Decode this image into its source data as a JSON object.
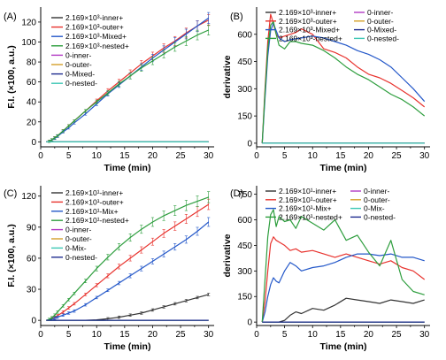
{
  "chart_data": [
    {
      "panel_label": "(A)",
      "type": "line",
      "xlabel": "Time (min)",
      "ylabel": "F.I. (×100, a.u.)",
      "xlim": [
        0,
        31
      ],
      "ylim": [
        -5,
        135
      ],
      "xticks": [
        0,
        5,
        10,
        15,
        20,
        25,
        30
      ],
      "yticks": [
        0,
        20,
        40,
        60,
        80,
        100,
        120
      ],
      "legend_position": "top-left",
      "error_bars": true,
      "x": [
        1,
        1.5,
        2,
        2.5,
        3,
        4,
        5,
        6,
        8,
        10,
        12,
        14,
        16,
        18,
        20,
        22,
        24,
        26,
        28,
        30
      ],
      "series": [
        {
          "name": "2.169×10³-inner+",
          "color": "#333333",
          "values": [
            0,
            0,
            0,
            0,
            0,
            0,
            0,
            0,
            0,
            0,
            0,
            0,
            0,
            0,
            0,
            0,
            0,
            0,
            0,
            0
          ]
        },
        {
          "name": "2.169×10³-outer+",
          "color": "#e8332e",
          "values": [
            0,
            0.6,
            2,
            4,
            6,
            11,
            16,
            21,
            31,
            41,
            51,
            60,
            69,
            78,
            86,
            94,
            101,
            109,
            116,
            122
          ]
        },
        {
          "name": "2.169×10³-Mixed+",
          "color": "#2458c9",
          "values": [
            0,
            0.5,
            1.8,
            3.5,
            5.5,
            10,
            14,
            19,
            28,
            38,
            48,
            57,
            66,
            75,
            84,
            92,
            100,
            108,
            116,
            124
          ]
        },
        {
          "name": "2.169×10³-nested+",
          "color": "#2e9e3e",
          "values": [
            0,
            0.6,
            2,
            4,
            6,
            11,
            16,
            21,
            31,
            40,
            49,
            58,
            66,
            74,
            81,
            88,
            95,
            101,
            107,
            112
          ]
        },
        {
          "name": "0-inner-",
          "color": "#b23bc4",
          "values": [
            0,
            0,
            0,
            0,
            0,
            0,
            0,
            0,
            0,
            0,
            0,
            0,
            0,
            0,
            0,
            0,
            0,
            0,
            0,
            0
          ]
        },
        {
          "name": "0-outer-",
          "color": "#d4a02a",
          "values": [
            0,
            0,
            0,
            0,
            0,
            0,
            0,
            0,
            0,
            0,
            0,
            0,
            0,
            0,
            0,
            0,
            0,
            0,
            0,
            0
          ]
        },
        {
          "name": "0-Mixed-",
          "color": "#1f2c8f",
          "values": [
            0,
            0,
            0,
            0,
            0,
            0,
            0,
            0,
            0,
            0,
            0,
            0,
            0,
            0,
            0,
            0,
            0,
            0,
            0,
            0
          ]
        },
        {
          "name": "0-nested-",
          "color": "#3cc7b4",
          "values": [
            0,
            0,
            0,
            0,
            0,
            0,
            0,
            0,
            0,
            0,
            0,
            0,
            0,
            0,
            0,
            0,
            0,
            0,
            0,
            0
          ]
        }
      ]
    },
    {
      "panel_label": "(B)",
      "type": "line",
      "xlabel": "Time (min)",
      "ylabel": "derivative",
      "xlim": [
        0,
        31
      ],
      "ylim": [
        -20,
        750
      ],
      "xticks": [
        0,
        5,
        10,
        15,
        20,
        25,
        30
      ],
      "yticks": [
        0,
        150,
        300,
        450,
        600
      ],
      "legend_position": "top",
      "error_bars": false,
      "x": [
        1,
        1.5,
        2,
        2.5,
        3,
        3.5,
        4,
        5,
        6,
        7,
        8,
        10,
        12,
        14,
        16,
        18,
        20,
        22,
        24,
        26,
        28,
        30
      ],
      "series": [
        {
          "name": "2.169×10³-inner+",
          "color": "#333333",
          "values": [
            0,
            0,
            0,
            0,
            0,
            0,
            0,
            0,
            0,
            0,
            0,
            0,
            0,
            0,
            0,
            0,
            0,
            0,
            0,
            0,
            0,
            0
          ]
        },
        {
          "name": "2.169×10³-outer+",
          "color": "#e8332e",
          "values": [
            0,
            300,
            560,
            710,
            660,
            600,
            580,
            590,
            600,
            610,
            630,
            600,
            520,
            500,
            470,
            420,
            380,
            360,
            330,
            290,
            250,
            200
          ]
        },
        {
          "name": "2.169×10³-Mixed+",
          "color": "#2458c9",
          "values": [
            0,
            250,
            480,
            620,
            660,
            620,
            580,
            560,
            570,
            575,
            580,
            590,
            580,
            560,
            540,
            510,
            490,
            460,
            420,
            360,
            300,
            230
          ]
        },
        {
          "name": "2.169×10³-nested+",
          "color": "#2e9e3e",
          "values": [
            0,
            280,
            520,
            650,
            670,
            600,
            540,
            520,
            560,
            560,
            550,
            540,
            510,
            470,
            420,
            380,
            350,
            310,
            270,
            240,
            200,
            150
          ]
        },
        {
          "name": "0-inner-",
          "color": "#b23bc4",
          "values": [
            0,
            0,
            0,
            0,
            0,
            0,
            0,
            0,
            0,
            0,
            0,
            0,
            0,
            0,
            0,
            0,
            0,
            0,
            0,
            0,
            0,
            0
          ]
        },
        {
          "name": "0-outer-",
          "color": "#d4a02a",
          "values": [
            0,
            0,
            0,
            0,
            0,
            0,
            0,
            0,
            0,
            0,
            0,
            0,
            0,
            0,
            0,
            0,
            0,
            0,
            0,
            0,
            0,
            0
          ]
        },
        {
          "name": "0-Mixed-",
          "color": "#1f2c8f",
          "values": [
            0,
            0,
            0,
            0,
            0,
            0,
            0,
            0,
            0,
            0,
            0,
            0,
            0,
            0,
            0,
            0,
            0,
            0,
            0,
            0,
            0,
            0
          ]
        },
        {
          "name": "0-nested-",
          "color": "#3cc7b4",
          "values": [
            0,
            0,
            0,
            0,
            0,
            0,
            0,
            0,
            0,
            0,
            0,
            0,
            0,
            0,
            0,
            0,
            0,
            0,
            0,
            0,
            0,
            0
          ]
        }
      ]
    },
    {
      "panel_label": "(C)",
      "type": "line",
      "xlabel": "Time (min)",
      "ylabel": "F.I. (×100, a.u.)",
      "xlim": [
        0,
        31
      ],
      "ylim": [
        -5,
        130
      ],
      "xticks": [
        0,
        5,
        10,
        15,
        20,
        25,
        30
      ],
      "yticks": [
        0,
        30,
        60,
        90,
        120
      ],
      "legend_position": "top-left",
      "error_bars": true,
      "x": [
        1,
        1.5,
        2,
        2.5,
        3,
        4,
        5,
        6,
        8,
        10,
        12,
        14,
        16,
        18,
        20,
        22,
        24,
        26,
        28,
        30
      ],
      "series": [
        {
          "name": "2.169×10¹-inner+",
          "color": "#333333",
          "values": [
            0,
            0,
            0,
            0,
            0,
            0,
            0,
            0,
            0,
            0.5,
            1.5,
            3,
            5,
            7,
            10,
            13,
            16,
            19,
            22,
            25
          ]
        },
        {
          "name": "2.169×10¹-outer+",
          "color": "#e8332e",
          "values": [
            0,
            0.5,
            1.5,
            3,
            4.5,
            8,
            12,
            16,
            25,
            34,
            43,
            52,
            60,
            68,
            76,
            84,
            91,
            98,
            105,
            112
          ]
        },
        {
          "name": "2.169×10¹-Mix+",
          "color": "#2458c9",
          "values": [
            0,
            0.3,
            1,
            2,
            3,
            5,
            7,
            9,
            15,
            22,
            29,
            36,
            43,
            50,
            57,
            64,
            71,
            78,
            86,
            95
          ]
        },
        {
          "name": "2.169×10¹-nested+",
          "color": "#2e9e3e",
          "values": [
            0,
            0.8,
            2.5,
            5,
            8,
            14,
            20,
            26,
            38,
            50,
            61,
            71,
            80,
            88,
            95,
            101,
            106,
            111,
            115,
            119
          ]
        },
        {
          "name": "0-inner-",
          "color": "#b23bc4",
          "values": [
            0,
            0,
            0,
            0,
            0,
            0,
            0,
            0,
            0,
            0,
            0,
            0,
            0,
            0,
            0,
            0,
            0,
            0,
            0,
            0
          ]
        },
        {
          "name": "0-outer-",
          "color": "#d4a02a",
          "values": [
            0,
            0,
            0,
            0,
            0,
            0,
            0,
            0,
            0,
            0,
            0,
            0,
            0,
            0,
            0,
            0,
            0,
            0,
            0,
            0
          ]
        },
        {
          "name": "0-Mix-",
          "color": "#3cc7b4",
          "values": [
            0,
            0,
            0,
            0,
            0,
            0,
            0,
            0,
            0,
            0,
            0,
            0,
            0,
            0,
            0,
            0,
            0,
            0,
            0,
            0
          ]
        },
        {
          "name": "0-nested-",
          "color": "#1f2c8f",
          "values": [
            0,
            0,
            0,
            0,
            0,
            0,
            0,
            0,
            0,
            0,
            0,
            0,
            0,
            0,
            0,
            0,
            0,
            0,
            0,
            0
          ]
        }
      ]
    },
    {
      "panel_label": "(D)",
      "type": "line",
      "xlabel": "Time (min)",
      "ylabel": "derivative",
      "xlim": [
        0,
        31
      ],
      "ylim": [
        -20,
        800
      ],
      "xticks": [
        0,
        5,
        10,
        15,
        20,
        25,
        30
      ],
      "yticks": [
        0,
        150,
        300,
        450,
        600,
        750
      ],
      "legend_position": "top",
      "error_bars": false,
      "x": [
        1,
        1.5,
        2,
        2.5,
        3,
        3.5,
        4,
        5,
        6,
        7,
        8,
        10,
        12,
        14,
        16,
        18,
        20,
        22,
        24,
        26,
        28,
        30
      ],
      "series": [
        {
          "name": "2.169×10¹-inner+",
          "color": "#333333",
          "values": [
            0,
            0,
            0,
            0,
            0,
            0,
            0,
            10,
            40,
            60,
            50,
            80,
            70,
            100,
            140,
            130,
            120,
            110,
            130,
            120,
            110,
            130
          ]
        },
        {
          "name": "2.169×10¹-outer+",
          "color": "#e8332e",
          "values": [
            0,
            120,
            300,
            460,
            500,
            480,
            470,
            450,
            420,
            430,
            410,
            420,
            400,
            380,
            400,
            380,
            360,
            340,
            360,
            320,
            300,
            250
          ]
        },
        {
          "name": "2.169×10¹-Mix+",
          "color": "#2458c9",
          "values": [
            0,
            60,
            150,
            220,
            260,
            240,
            230,
            300,
            350,
            330,
            300,
            320,
            330,
            350,
            380,
            400,
            400,
            390,
            400,
            380,
            380,
            360
          ]
        },
        {
          "name": "2.169×10¹-nested+",
          "color": "#2e9e3e",
          "values": [
            0,
            250,
            500,
            630,
            660,
            560,
            620,
            590,
            600,
            550,
            620,
            580,
            540,
            600,
            480,
            510,
            410,
            330,
            480,
            250,
            180,
            160
          ]
        },
        {
          "name": "0-inner-",
          "color": "#b23bc4",
          "values": [
            0,
            0,
            0,
            0,
            0,
            0,
            0,
            0,
            0,
            0,
            0,
            0,
            0,
            0,
            0,
            0,
            0,
            0,
            0,
            0,
            0,
            0
          ]
        },
        {
          "name": "0-outer-",
          "color": "#d4a02a",
          "values": [
            0,
            0,
            0,
            0,
            0,
            0,
            0,
            0,
            0,
            0,
            0,
            0,
            0,
            0,
            0,
            0,
            0,
            0,
            0,
            0,
            0,
            0
          ]
        },
        {
          "name": "0-Mix-",
          "color": "#3cc7b4",
          "values": [
            0,
            0,
            0,
            0,
            0,
            0,
            0,
            0,
            0,
            0,
            0,
            0,
            0,
            0,
            0,
            0,
            0,
            0,
            0,
            0,
            0,
            0
          ]
        },
        {
          "name": "0-nested-",
          "color": "#1f2c8f",
          "values": [
            0,
            0,
            0,
            0,
            0,
            0,
            0,
            0,
            0,
            0,
            0,
            0,
            0,
            0,
            0,
            0,
            0,
            0,
            0,
            0,
            0,
            0
          ]
        }
      ]
    }
  ]
}
